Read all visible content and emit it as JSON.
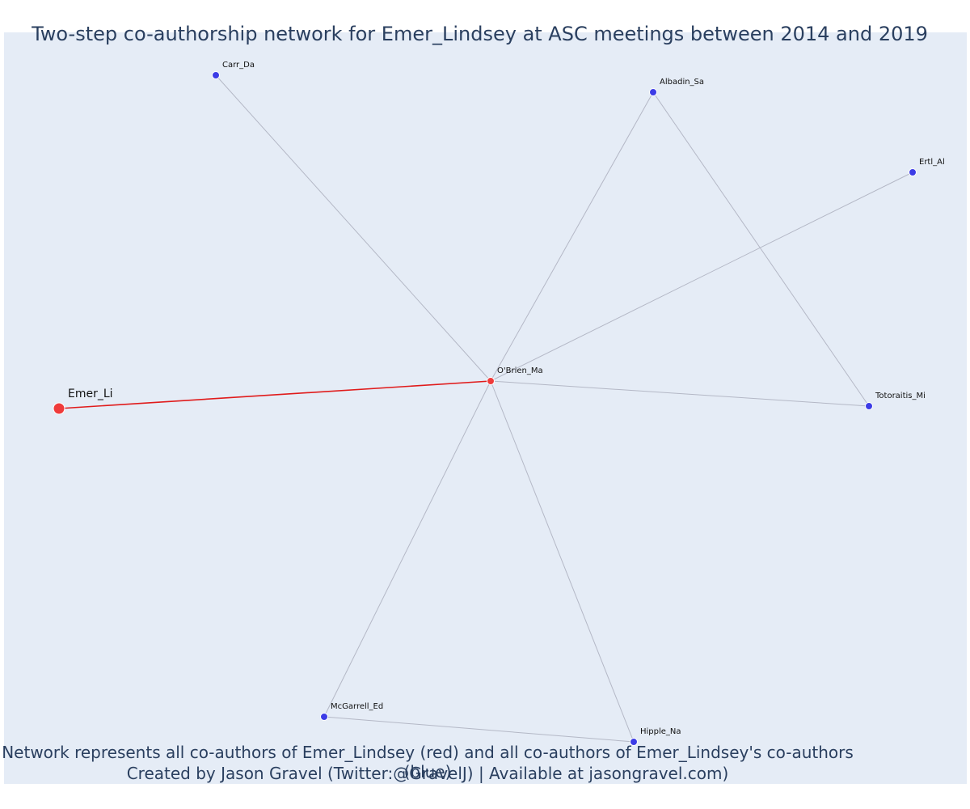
{
  "title": "Two-step co-authorship network for Emer_Lindsey at ASC meetings between 2014 and 2019",
  "caption_line1": "Network represents all co-authors of Emer_Lindsey (red) and all co-authors of Emer_Lindsey's co-authors (blue)",
  "caption_line2": "Created by Jason Gravel (Twitter:@GravelJ) | Available at jasongravel.com)",
  "colors": {
    "background": "#e5ecf6",
    "red_node": "#ef3b3b",
    "blue_node": "#3c3ce6",
    "red_edge": "#e01b1b",
    "gray_edge": "#b4b8c6",
    "text": "#2a3f5f"
  },
  "nodes": [
    {
      "id": "Emer_Li",
      "label": "Emer_Li",
      "group": "red",
      "focal": true
    },
    {
      "id": "OBrien_Ma",
      "label": "O'Brien_Ma",
      "group": "red",
      "focal": false
    },
    {
      "id": "Carr_Da",
      "label": "Carr_Da",
      "group": "blue",
      "focal": false
    },
    {
      "id": "Albadin_Sa",
      "label": "Albadin_Sa",
      "group": "blue",
      "focal": false
    },
    {
      "id": "Ertl_Al",
      "label": "Ertl_Al",
      "group": "blue",
      "focal": false
    },
    {
      "id": "Totoraitis_Mi",
      "label": "Totoraitis_Mi",
      "group": "blue",
      "focal": false
    },
    {
      "id": "Hipple_Na",
      "label": "Hipple_Na",
      "group": "blue",
      "focal": false
    },
    {
      "id": "McGarrell_Ed",
      "label": "McGarrell_Ed",
      "group": "blue",
      "focal": false
    }
  ],
  "edges": [
    {
      "from": "Emer_Li",
      "to": "OBrien_Ma",
      "type": "red"
    },
    {
      "from": "OBrien_Ma",
      "to": "Carr_Da",
      "type": "gray"
    },
    {
      "from": "OBrien_Ma",
      "to": "Albadin_Sa",
      "type": "gray"
    },
    {
      "from": "OBrien_Ma",
      "to": "Ertl_Al",
      "type": "gray"
    },
    {
      "from": "OBrien_Ma",
      "to": "Totoraitis_Mi",
      "type": "gray"
    },
    {
      "from": "OBrien_Ma",
      "to": "Hipple_Na",
      "type": "gray"
    },
    {
      "from": "OBrien_Ma",
      "to": "McGarrell_Ed",
      "type": "gray"
    },
    {
      "from": "Albadin_Sa",
      "to": "Totoraitis_Mi",
      "type": "gray"
    },
    {
      "from": "McGarrell_Ed",
      "to": "Hipple_Na",
      "type": "gray"
    }
  ]
}
